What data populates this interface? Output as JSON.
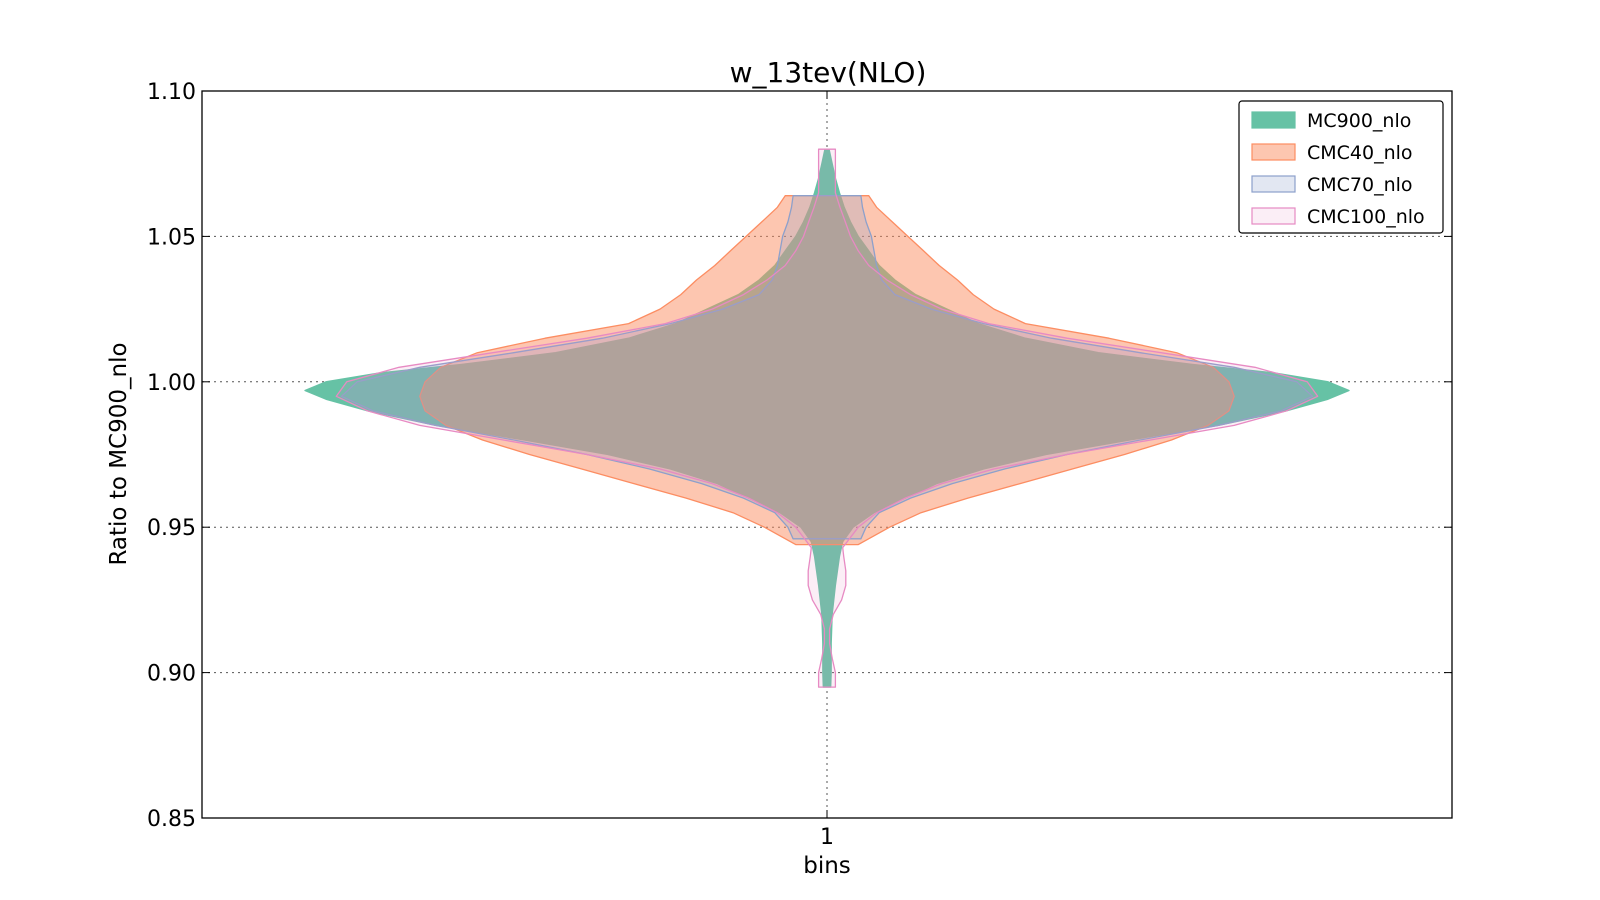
{
  "chart_data": {
    "type": "violin",
    "title": "w_13tev(NLO)",
    "xlabel": "bins",
    "ylabel": "Ratio to MC900_nlo",
    "categories": [
      "1"
    ],
    "ylim": [
      0.85,
      1.1
    ],
    "yticks": [
      "0.85",
      "0.90",
      "0.95",
      "1.00",
      "1.05",
      "1.10"
    ],
    "grid": true,
    "legend_position": "top-right",
    "series": [
      {
        "name": "MC900_nlo",
        "color": "#66c2a5",
        "fill_opacity": 1.0,
        "stroke": "#66c2a5",
        "y_min": 0.895,
        "y_max": 1.08,
        "profile": [
          [
            0.895,
            0.007
          ],
          [
            0.9,
            0.008
          ],
          [
            0.91,
            0.008
          ],
          [
            0.92,
            0.01
          ],
          [
            0.93,
            0.016
          ],
          [
            0.94,
            0.024
          ],
          [
            0.945,
            0.03
          ],
          [
            0.95,
            0.05
          ],
          [
            0.955,
            0.09
          ],
          [
            0.96,
            0.15
          ],
          [
            0.965,
            0.21
          ],
          [
            0.97,
            0.3
          ],
          [
            0.975,
            0.42
          ],
          [
            0.98,
            0.58
          ],
          [
            0.985,
            0.75
          ],
          [
            0.99,
            0.88
          ],
          [
            0.994,
            0.96
          ],
          [
            0.997,
            1.0
          ],
          [
            1.0,
            0.96
          ],
          [
            1.003,
            0.86
          ],
          [
            1.006,
            0.7
          ],
          [
            1.01,
            0.52
          ],
          [
            1.015,
            0.38
          ],
          [
            1.02,
            0.29
          ],
          [
            1.025,
            0.23
          ],
          [
            1.03,
            0.17
          ],
          [
            1.035,
            0.13
          ],
          [
            1.04,
            0.1
          ],
          [
            1.045,
            0.08
          ],
          [
            1.05,
            0.06
          ],
          [
            1.055,
            0.045
          ],
          [
            1.06,
            0.033
          ],
          [
            1.065,
            0.024
          ],
          [
            1.07,
            0.016
          ],
          [
            1.075,
            0.01
          ],
          [
            1.08,
            0.004
          ]
        ]
      },
      {
        "name": "CMC40_nlo",
        "color": "#fc8d62",
        "fill_opacity": 0.5,
        "stroke": "#fc8d62",
        "y_min": 0.944,
        "y_max": 1.064,
        "profile": [
          [
            0.944,
            0.06
          ],
          [
            0.95,
            0.12
          ],
          [
            0.955,
            0.18
          ],
          [
            0.96,
            0.27
          ],
          [
            0.965,
            0.37
          ],
          [
            0.97,
            0.47
          ],
          [
            0.975,
            0.57
          ],
          [
            0.98,
            0.66
          ],
          [
            0.985,
            0.73
          ],
          [
            0.99,
            0.77
          ],
          [
            0.995,
            0.78
          ],
          [
            1.0,
            0.77
          ],
          [
            1.005,
            0.74
          ],
          [
            1.01,
            0.67
          ],
          [
            1.015,
            0.54
          ],
          [
            1.02,
            0.38
          ],
          [
            1.025,
            0.32
          ],
          [
            1.03,
            0.28
          ],
          [
            1.035,
            0.25
          ],
          [
            1.04,
            0.215
          ],
          [
            1.045,
            0.185
          ],
          [
            1.05,
            0.155
          ],
          [
            1.055,
            0.125
          ],
          [
            1.06,
            0.095
          ],
          [
            1.064,
            0.08
          ]
        ]
      },
      {
        "name": "CMC70_nlo",
        "color": "#8da0cb",
        "fill_opacity": 0.25,
        "stroke": "#8da0cb",
        "y_min": 0.946,
        "y_max": 1.064,
        "profile": [
          [
            0.946,
            0.065
          ],
          [
            0.95,
            0.075
          ],
          [
            0.955,
            0.1
          ],
          [
            0.96,
            0.16
          ],
          [
            0.965,
            0.24
          ],
          [
            0.97,
            0.34
          ],
          [
            0.975,
            0.46
          ],
          [
            0.98,
            0.6
          ],
          [
            0.985,
            0.75
          ],
          [
            0.99,
            0.87
          ],
          [
            0.995,
            0.93
          ],
          [
            1.0,
            0.9
          ],
          [
            1.005,
            0.78
          ],
          [
            1.01,
            0.6
          ],
          [
            1.015,
            0.43
          ],
          [
            1.02,
            0.3
          ],
          [
            1.025,
            0.2
          ],
          [
            1.03,
            0.13
          ],
          [
            1.035,
            0.105
          ],
          [
            1.04,
            0.095
          ],
          [
            1.045,
            0.09
          ],
          [
            1.05,
            0.085
          ],
          [
            1.055,
            0.075
          ],
          [
            1.06,
            0.068
          ],
          [
            1.064,
            0.065
          ]
        ]
      },
      {
        "name": "CMC100_nlo",
        "color": "#e78ac3",
        "fill_opacity": 0.15,
        "stroke": "#e78ac3",
        "y_min": 0.895,
        "y_max": 1.08,
        "profile": [
          [
            0.895,
            0.016
          ],
          [
            0.9,
            0.016
          ],
          [
            0.905,
            0.01
          ],
          [
            0.91,
            0.005
          ],
          [
            0.915,
            0.005
          ],
          [
            0.92,
            0.012
          ],
          [
            0.925,
            0.028
          ],
          [
            0.93,
            0.036
          ],
          [
            0.935,
            0.036
          ],
          [
            0.94,
            0.032
          ],
          [
            0.943,
            0.03
          ],
          [
            0.95,
            0.06
          ],
          [
            0.955,
            0.095
          ],
          [
            0.96,
            0.15
          ],
          [
            0.965,
            0.22
          ],
          [
            0.97,
            0.32
          ],
          [
            0.975,
            0.46
          ],
          [
            0.98,
            0.62
          ],
          [
            0.985,
            0.78
          ],
          [
            0.99,
            0.88
          ],
          [
            0.995,
            0.94
          ],
          [
            1.0,
            0.92
          ],
          [
            1.005,
            0.82
          ],
          [
            1.01,
            0.64
          ],
          [
            1.015,
            0.46
          ],
          [
            1.02,
            0.31
          ],
          [
            1.025,
            0.22
          ],
          [
            1.03,
            0.16
          ],
          [
            1.035,
            0.115
          ],
          [
            1.04,
            0.08
          ],
          [
            1.045,
            0.06
          ],
          [
            1.05,
            0.045
          ],
          [
            1.055,
            0.035
          ],
          [
            1.06,
            0.025
          ],
          [
            1.065,
            0.016
          ],
          [
            1.07,
            0.016
          ],
          [
            1.075,
            0.016
          ],
          [
            1.08,
            0.016
          ]
        ]
      }
    ]
  }
}
